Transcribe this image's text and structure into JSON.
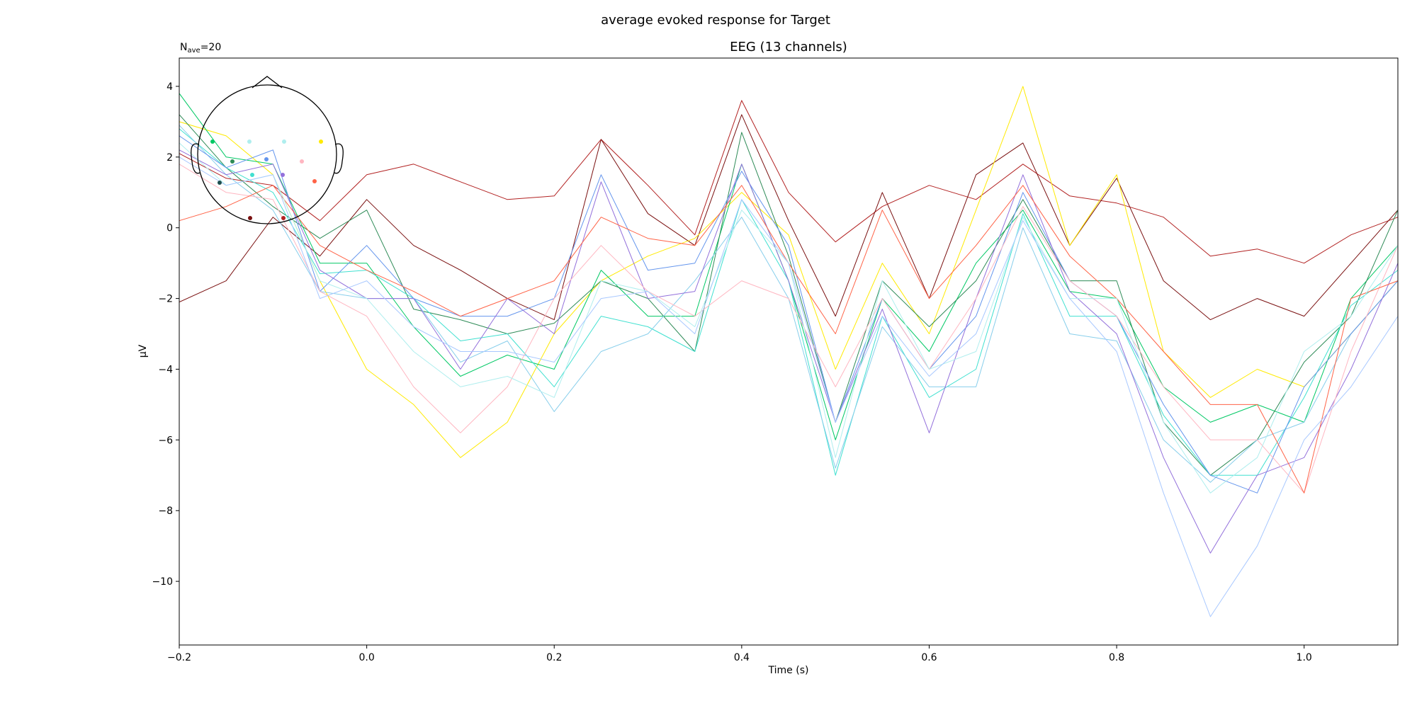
{
  "page": {
    "suptitle": "average evoked response for Target"
  },
  "chart_data": {
    "type": "line",
    "title": "EEG (13 channels)",
    "annotation": {
      "base": "N",
      "sub": "ave",
      "value": "=20"
    },
    "xlabel": "Time (s)",
    "ylabel": "µV",
    "xlim": [
      -0.2,
      1.1
    ],
    "ylim": [
      -11.8,
      4.8
    ],
    "xticks": [
      -0.2,
      0.0,
      0.2,
      0.4,
      0.6,
      0.8,
      1.0
    ],
    "xtick_labels": [
      "−0.2",
      "0.0",
      "0.2",
      "0.4",
      "0.6",
      "0.8",
      "1.0"
    ],
    "yticks": [
      4,
      2,
      0,
      -2,
      -4,
      -6,
      -8,
      -10
    ],
    "ytick_labels": [
      "4",
      "2",
      "0",
      "−2",
      "−4",
      "−6",
      "−8",
      "−10"
    ],
    "grid": false,
    "inset": "sensor-layout head map, top-left, 13 colored sensor dots",
    "x": [
      -0.2,
      -0.15,
      -0.1,
      -0.05,
      0.0,
      0.05,
      0.1,
      0.15,
      0.2,
      0.25,
      0.3,
      0.35,
      0.4,
      0.45,
      0.5,
      0.55,
      0.6,
      0.65,
      0.7,
      0.75,
      0.8,
      0.85,
      0.9,
      0.95,
      1.0,
      1.05,
      1.1
    ],
    "series": [
      {
        "color": "#b22222",
        "values": [
          2.1,
          1.4,
          1.2,
          0.2,
          1.5,
          1.8,
          1.3,
          0.8,
          0.9,
          2.5,
          1.2,
          -0.2,
          3.6,
          1.0,
          -0.4,
          0.6,
          1.2,
          0.8,
          1.8,
          0.9,
          0.7,
          0.3,
          -0.8,
          -0.6,
          -1.0,
          -0.2,
          0.3
        ]
      },
      {
        "color": "#7a1010",
        "values": [
          -2.1,
          -1.5,
          0.3,
          -0.8,
          0.8,
          -0.5,
          -1.2,
          -2.0,
          -2.6,
          2.5,
          0.4,
          -0.5,
          3.2,
          0.2,
          -2.5,
          1.0,
          -2.0,
          1.5,
          2.4,
          -0.5,
          1.4,
          -1.5,
          -2.6,
          -2.0,
          -2.5,
          -1.0,
          0.5
        ]
      },
      {
        "color": "#ffea00",
        "values": [
          3.0,
          2.6,
          1.5,
          -1.5,
          -4.0,
          -5.0,
          -6.5,
          -5.5,
          -3.0,
          -1.5,
          -0.8,
          -0.3,
          1.0,
          -0.2,
          -4.0,
          -1.0,
          -3.0,
          0.5,
          4.0,
          -0.5,
          1.5,
          -3.5,
          -4.8,
          -4.0,
          -4.5,
          -3.0,
          -1.5
        ]
      },
      {
        "color": "#00c864",
        "values": [
          3.8,
          2.0,
          1.8,
          -1.0,
          -1.0,
          -2.8,
          -4.2,
          -3.6,
          -4.0,
          -1.2,
          -2.5,
          -2.5,
          1.8,
          -1.5,
          -6.0,
          -2.0,
          -3.5,
          -1.0,
          0.5,
          -1.8,
          -2.0,
          -4.5,
          -5.5,
          -5.0,
          -5.5,
          -2.0,
          -0.5
        ]
      },
      {
        "color": "#2e8b57",
        "values": [
          3.2,
          1.7,
          0.6,
          -0.3,
          0.5,
          -2.3,
          -2.6,
          -3.0,
          -2.7,
          -1.5,
          -2.0,
          -3.5,
          2.7,
          -0.8,
          -5.5,
          -1.5,
          -2.8,
          -1.5,
          0.8,
          -1.5,
          -1.5,
          -5.5,
          -7.0,
          -6.0,
          -3.8,
          -2.5,
          0.5
        ]
      },
      {
        "color": "#40e0d0",
        "values": [
          2.8,
          1.7,
          1.0,
          -1.3,
          -1.2,
          -2.0,
          -3.2,
          -3.0,
          -4.5,
          -2.5,
          -2.8,
          -3.5,
          0.8,
          -1.5,
          -7.0,
          -2.5,
          -4.8,
          -4.0,
          0.4,
          -2.5,
          -2.5,
          -5.3,
          -7.0,
          -7.0,
          -4.8,
          -2.2,
          -1.2
        ]
      },
      {
        "color": "#87ceeb",
        "values": [
          2.9,
          1.5,
          0.5,
          -1.8,
          -2.0,
          -2.0,
          -3.8,
          -3.2,
          -5.2,
          -3.5,
          -3.0,
          -1.5,
          0.3,
          -2.0,
          -6.8,
          -2.8,
          -4.5,
          -4.5,
          0.0,
          -3.0,
          -3.2,
          -6.0,
          -7.2,
          -6.0,
          -5.5,
          -3.0,
          -1.5
        ]
      },
      {
        "color": "#6495ed",
        "values": [
          2.6,
          1.7,
          2.2,
          -1.8,
          -0.5,
          -2.0,
          -2.5,
          -2.5,
          -2.0,
          1.5,
          -1.2,
          -1.0,
          1.6,
          -0.5,
          -5.5,
          -2.0,
          -4.0,
          -2.5,
          1.0,
          -1.5,
          -2.5,
          -5.0,
          -7.0,
          -7.5,
          -4.5,
          -3.0,
          -1.5
        ]
      },
      {
        "color": "#9370db",
        "values": [
          2.2,
          1.5,
          1.8,
          -1.2,
          -2.0,
          -2.0,
          -4.0,
          -2.0,
          -3.0,
          1.3,
          -2.0,
          -1.8,
          1.8,
          -1.5,
          -5.5,
          -2.3,
          -5.8,
          -2.0,
          1.5,
          -1.8,
          -3.0,
          -6.5,
          -9.2,
          -7.0,
          -6.5,
          -4.0,
          -1.0
        ]
      },
      {
        "color": "#ffb6c1",
        "values": [
          1.8,
          1.0,
          0.8,
          -1.8,
          -2.5,
          -4.5,
          -5.8,
          -4.5,
          -2.0,
          -0.5,
          -1.8,
          -2.5,
          -1.5,
          -2.0,
          -4.5,
          -2.0,
          -4.0,
          -2.0,
          0.6,
          -1.5,
          -2.5,
          -4.5,
          -6.0,
          -6.0,
          -7.5,
          -3.5,
          -0.5
        ]
      },
      {
        "color": "#ff6347",
        "values": [
          0.2,
          0.6,
          1.2,
          -0.5,
          -1.2,
          -1.8,
          -2.5,
          -2.0,
          -1.5,
          0.3,
          -0.3,
          -0.5,
          1.2,
          -1.0,
          -3.0,
          0.5,
          -2.0,
          -0.5,
          1.2,
          -0.8,
          -2.0,
          -3.5,
          -5.0,
          -5.0,
          -7.5,
          -2.0,
          -1.5
        ]
      },
      {
        "color": "#afeeee",
        "values": [
          2.4,
          1.2,
          1.5,
          -1.5,
          -2.0,
          -3.5,
          -4.5,
          -4.2,
          -4.8,
          -1.5,
          -1.8,
          -2.8,
          0.5,
          -1.0,
          -6.5,
          -1.5,
          -4.0,
          -3.5,
          0.3,
          -2.0,
          -2.0,
          -5.5,
          -7.5,
          -6.5,
          -3.5,
          -2.5,
          -0.5
        ]
      },
      {
        "color": "#a8c8ff",
        "values": [
          2.0,
          1.2,
          1.5,
          -2.0,
          -1.5,
          -2.8,
          -3.5,
          -3.5,
          -3.8,
          -2.0,
          -1.8,
          -3.0,
          0.8,
          -1.0,
          -5.5,
          -2.5,
          -4.2,
          -3.0,
          0.2,
          -2.0,
          -3.5,
          -7.5,
          -11.0,
          -9.0,
          -6.0,
          -4.5,
          -2.5
        ]
      }
    ]
  }
}
